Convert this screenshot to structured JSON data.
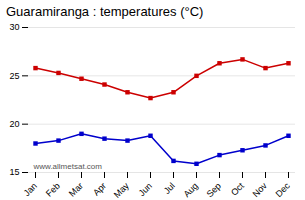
{
  "chart_data": {
    "type": "line",
    "title": "Guaramiranga : temperatures (°C)",
    "categories": [
      "Jan",
      "Feb",
      "Mar",
      "Apr",
      "May",
      "Jun",
      "Jul",
      "Aug",
      "Sep",
      "Oct",
      "Nov",
      "Dec"
    ],
    "series": [
      {
        "color": "#cc0000",
        "marker": "square",
        "values": [
          25.8,
          25.3,
          24.7,
          24.1,
          23.3,
          22.7,
          23.3,
          25.0,
          26.3,
          26.7,
          25.8,
          26.3
        ]
      },
      {
        "color": "#0000cc",
        "marker": "square",
        "values": [
          18.0,
          18.3,
          19.0,
          18.5,
          18.3,
          18.8,
          16.2,
          15.9,
          16.8,
          17.3,
          17.8,
          18.8
        ]
      }
    ],
    "ylim": [
      15,
      30
    ],
    "yticks": [
      15,
      20,
      25,
      30
    ],
    "grid": true,
    "annotations": [
      "www.allmetsat.com"
    ]
  }
}
